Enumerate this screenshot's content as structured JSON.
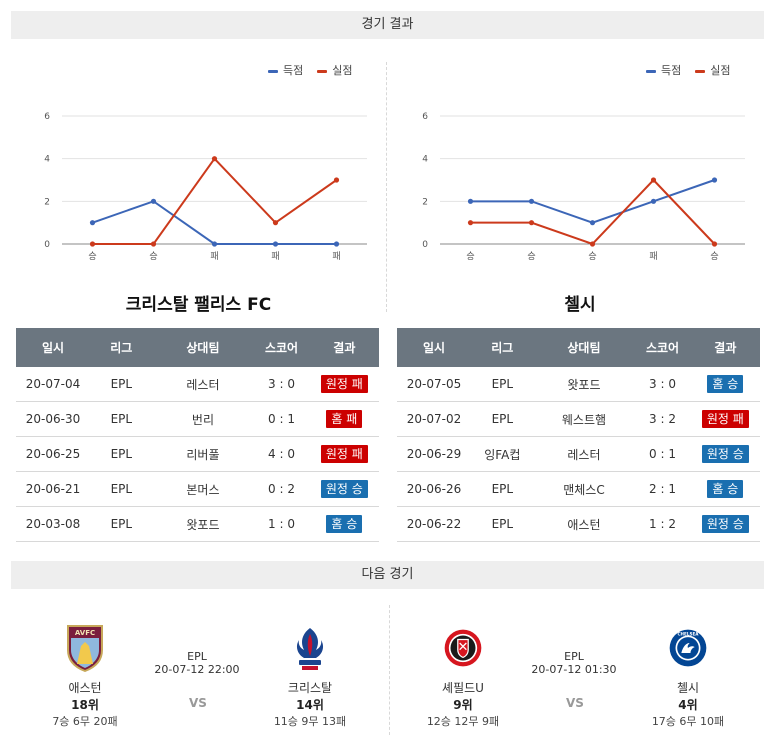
{
  "sections": {
    "results_title": "경기 결과",
    "next_title": "다음 경기"
  },
  "legend": {
    "scored": "득점",
    "conceded": "실점",
    "scored_color": "#3c66b7",
    "conceded_color": "#cc3a1c"
  },
  "colors": {
    "away_badge": "#cc0000",
    "home_badge": "#1a6fb0",
    "header_bg": "#6b7680"
  },
  "chart_data": [
    {
      "type": "line",
      "categories": [
        "승",
        "승",
        "패",
        "패",
        "패"
      ],
      "y_ticks": [
        "0",
        "2",
        "4",
        "6"
      ],
      "ylim": [
        0,
        6
      ],
      "series": [
        {
          "name": "득점",
          "values": [
            1,
            2,
            0,
            0,
            0
          ]
        },
        {
          "name": "실점",
          "values": [
            0,
            0,
            4,
            1,
            3
          ]
        }
      ]
    },
    {
      "type": "line",
      "categories": [
        "승",
        "승",
        "승",
        "패",
        "승"
      ],
      "y_ticks": [
        "0",
        "2",
        "4",
        "6"
      ],
      "ylim": [
        0,
        6
      ],
      "series": [
        {
          "name": "득점",
          "values": [
            2,
            2,
            1,
            2,
            3
          ]
        },
        {
          "name": "실점",
          "values": [
            1,
            1,
            0,
            3,
            0
          ]
        }
      ]
    }
  ],
  "teams": {
    "left": {
      "name": "크리스탈 팰리스 FC",
      "headers": [
        "일시",
        "리그",
        "상대팀",
        "스코어",
        "결과"
      ],
      "rows": [
        {
          "date": "20-07-04",
          "league": "EPL",
          "opponent": "레스터",
          "score": "3 : 0",
          "result": "원정 패",
          "type": "away"
        },
        {
          "date": "20-06-30",
          "league": "EPL",
          "opponent": "번리",
          "score": "0 : 1",
          "result": "홈 패",
          "type": "away"
        },
        {
          "date": "20-06-25",
          "league": "EPL",
          "opponent": "리버풀",
          "score": "4 : 0",
          "result": "원정 패",
          "type": "away"
        },
        {
          "date": "20-06-21",
          "league": "EPL",
          "opponent": "본머스",
          "score": "0 : 2",
          "result": "원정 승",
          "type": "home"
        },
        {
          "date": "20-03-08",
          "league": "EPL",
          "opponent": "왓포드",
          "score": "1 : 0",
          "result": "홈 승",
          "type": "home"
        }
      ]
    },
    "right": {
      "name": "첼시",
      "headers": [
        "일시",
        "리그",
        "상대팀",
        "스코어",
        "결과"
      ],
      "rows": [
        {
          "date": "20-07-05",
          "league": "EPL",
          "opponent": "왓포드",
          "score": "3 : 0",
          "result": "홈 승",
          "type": "home"
        },
        {
          "date": "20-07-02",
          "league": "EPL",
          "opponent": "웨스트햄",
          "score": "3 : 2",
          "result": "원정 패",
          "type": "away"
        },
        {
          "date": "20-06-29",
          "league": "잉FA컵",
          "opponent": "레스터",
          "score": "0 : 1",
          "result": "원정 승",
          "type": "home"
        },
        {
          "date": "20-06-26",
          "league": "EPL",
          "opponent": "맨체스C",
          "score": "2 : 1",
          "result": "홈 승",
          "type": "home"
        },
        {
          "date": "20-06-22",
          "league": "EPL",
          "opponent": "애스턴",
          "score": "1 : 2",
          "result": "원정 승",
          "type": "home"
        }
      ]
    }
  },
  "next_matches": [
    {
      "league": "EPL",
      "datetime": "20-07-12 22:00",
      "vs": "VS",
      "home": {
        "name": "애스턴",
        "rank": "18위",
        "record": "7승 6무 20패",
        "logo": "aston-villa-logo",
        "logo_text": "AVFC"
      },
      "away": {
        "name": "크리스탈",
        "rank": "14위",
        "record": "11승 9무 13패",
        "logo": "crystal-palace-logo"
      }
    },
    {
      "league": "EPL",
      "datetime": "20-07-12 01:30",
      "vs": "VS",
      "home": {
        "name": "셰필드U",
        "rank": "9위",
        "record": "12승 12무 9패",
        "logo": "sheffield-united-logo"
      },
      "away": {
        "name": "첼시",
        "rank": "4위",
        "record": "17승 6무 10패",
        "logo": "chelsea-logo",
        "logo_text": "CHELSEA"
      }
    }
  ]
}
